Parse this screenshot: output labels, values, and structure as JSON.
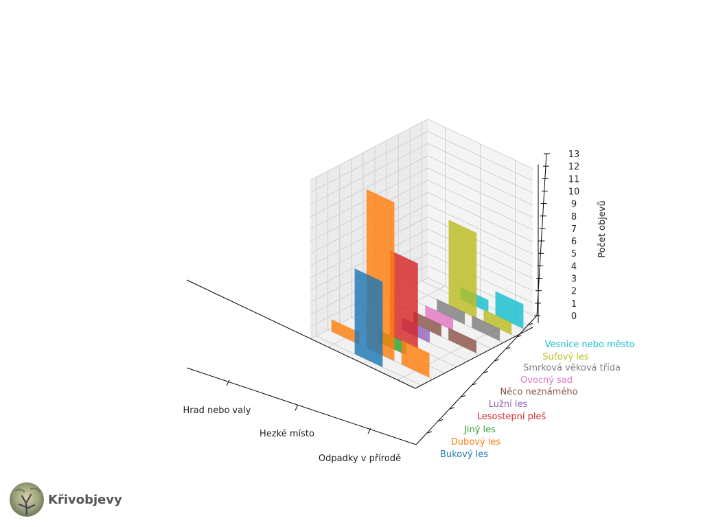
{
  "chart_data": {
    "type": "bar3d",
    "x_categories": [
      "Hrad nebo valy",
      "Hezké místo",
      "Odpadky v přírodě"
    ],
    "y_categories": [
      "Bukový les",
      "Dubový les",
      "Jiný les",
      "Lesostepní pleš",
      "Lužní les",
      "Něco neznámého",
      "Ovocný sad",
      "Smrková věková třída",
      "Suťový les",
      "Vesnice nebo město"
    ],
    "colors": [
      "#1f77b4",
      "#ff7f0e",
      "#2ca02c",
      "#d62728",
      "#9467bd",
      "#8c564b",
      "#e377c2",
      "#7f7f7f",
      "#bcbd22",
      "#17becf"
    ],
    "values": [
      [
        0,
        7,
        0
      ],
      [
        1,
        13,
        2
      ],
      [
        0,
        1,
        0
      ],
      [
        0,
        7,
        0
      ],
      [
        0,
        1,
        0
      ],
      [
        0,
        1,
        1
      ],
      [
        0,
        1,
        0
      ],
      [
        0,
        1,
        1
      ],
      [
        0,
        7,
        1
      ],
      [
        0,
        1,
        2
      ]
    ],
    "zlabel": "Počet objevů",
    "z_ticks": [
      0,
      1,
      2,
      3,
      4,
      5,
      6,
      7,
      8,
      9,
      10,
      11,
      12,
      13
    ],
    "zlim": [
      0,
      13
    ],
    "grid": true
  },
  "brand": {
    "name": "Křivobjevy",
    "logo_icon": "tree-photo-logo"
  }
}
